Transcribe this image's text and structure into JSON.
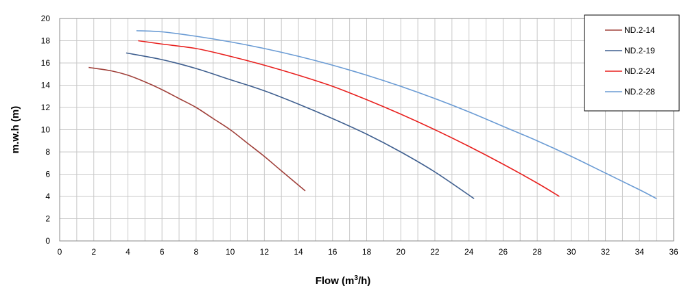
{
  "chart_data": {
    "type": "line",
    "xlabel_main": "Flow (m",
    "xlabel_sup": "3",
    "xlabel_tail": "/h)",
    "ylabel": "m.w.h (m)",
    "xlim": [
      0,
      36
    ],
    "ylim": [
      0,
      20
    ],
    "x_ticks": [
      "0",
      "2",
      "4",
      "6",
      "8",
      "10",
      "12",
      "14",
      "16",
      "18",
      "20",
      "22",
      "24",
      "26",
      "28",
      "30",
      "32",
      "34",
      "36"
    ],
    "y_ticks": [
      "0",
      "2",
      "4",
      "6",
      "8",
      "10",
      "12",
      "14",
      "16",
      "18",
      "20"
    ],
    "x_minor_step": 1,
    "y_step": 2,
    "grid": true,
    "legend_position": "top-right",
    "series": [
      {
        "name": "ND.2-14",
        "color": "#a0403a",
        "points": [
          [
            1.7,
            15.6
          ],
          [
            3,
            15.3
          ],
          [
            4,
            14.9
          ],
          [
            5,
            14.3
          ],
          [
            6,
            13.6
          ],
          [
            7,
            12.8
          ],
          [
            8,
            12.0
          ],
          [
            9,
            11.0
          ],
          [
            10,
            10.0
          ],
          [
            11,
            8.8
          ],
          [
            12,
            7.6
          ],
          [
            13,
            6.3
          ],
          [
            14.4,
            4.5
          ]
        ]
      },
      {
        "name": "ND.2-19",
        "color": "#3f5f8f",
        "points": [
          [
            3.9,
            16.9
          ],
          [
            6,
            16.3
          ],
          [
            8,
            15.5
          ],
          [
            10,
            14.5
          ],
          [
            12,
            13.5
          ],
          [
            14,
            12.3
          ],
          [
            16,
            11.0
          ],
          [
            18,
            9.6
          ],
          [
            20,
            8.0
          ],
          [
            22,
            6.2
          ],
          [
            24.3,
            3.8
          ]
        ]
      },
      {
        "name": "ND.2-24",
        "color": "#e8201e",
        "points": [
          [
            4.6,
            18.0
          ],
          [
            6,
            17.7
          ],
          [
            8,
            17.3
          ],
          [
            10,
            16.6
          ],
          [
            12,
            15.8
          ],
          [
            14,
            14.9
          ],
          [
            16,
            13.9
          ],
          [
            18,
            12.7
          ],
          [
            20,
            11.4
          ],
          [
            22,
            10.0
          ],
          [
            24,
            8.5
          ],
          [
            26,
            6.9
          ],
          [
            28,
            5.2
          ],
          [
            29.3,
            4.0
          ]
        ]
      },
      {
        "name": "ND.2-28",
        "color": "#6a9bd4",
        "points": [
          [
            4.5,
            18.9
          ],
          [
            6,
            18.8
          ],
          [
            8,
            18.4
          ],
          [
            10,
            17.9
          ],
          [
            12,
            17.3
          ],
          [
            14,
            16.6
          ],
          [
            16,
            15.8
          ],
          [
            18,
            14.9
          ],
          [
            20,
            13.9
          ],
          [
            22,
            12.8
          ],
          [
            24,
            11.6
          ],
          [
            26,
            10.3
          ],
          [
            28,
            9.0
          ],
          [
            30,
            7.6
          ],
          [
            32,
            6.1
          ],
          [
            34,
            4.6
          ],
          [
            35,
            3.8
          ]
        ]
      }
    ]
  }
}
